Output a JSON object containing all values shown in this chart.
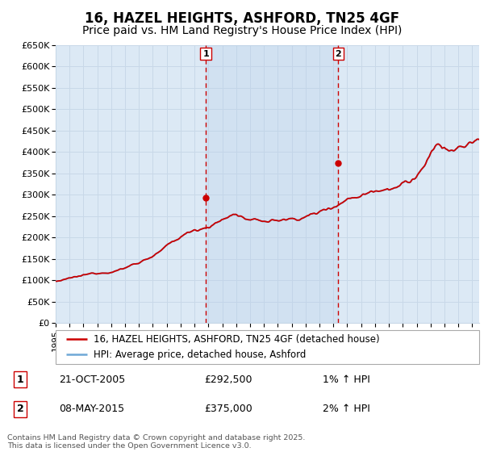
{
  "title": "16, HAZEL HEIGHTS, ASHFORD, TN25 4GF",
  "subtitle": "Price paid vs. HM Land Registry's House Price Index (HPI)",
  "title_fontsize": 12,
  "subtitle_fontsize": 10,
  "ylim": [
    0,
    650000
  ],
  "yticks": [
    0,
    50000,
    100000,
    150000,
    200000,
    250000,
    300000,
    350000,
    400000,
    450000,
    500000,
    550000,
    600000,
    650000
  ],
  "ytick_labels": [
    "£0",
    "£50K",
    "£100K",
    "£150K",
    "£200K",
    "£250K",
    "£300K",
    "£350K",
    "£400K",
    "£450K",
    "£500K",
    "£550K",
    "£600K",
    "£650K"
  ],
  "xlim_start": 1995.0,
  "xlim_end": 2025.5,
  "xtick_years": [
    1995,
    1996,
    1997,
    1998,
    1999,
    2000,
    2001,
    2002,
    2003,
    2004,
    2005,
    2006,
    2007,
    2008,
    2009,
    2010,
    2011,
    2012,
    2013,
    2014,
    2015,
    2016,
    2017,
    2018,
    2019,
    2020,
    2021,
    2022,
    2023,
    2024,
    2025
  ],
  "hpi_color": "#6fa8d6",
  "price_color": "#cc0000",
  "vline_color": "#cc0000",
  "grid_color": "#c8d8e8",
  "plot_bg_color": "#dce9f5",
  "shade_color": "#c8daf0",
  "sale1_year": 2005.81,
  "sale1_price": 292500,
  "sale2_year": 2015.36,
  "sale2_price": 375000,
  "legend_label1": "16, HAZEL HEIGHTS, ASHFORD, TN25 4GF (detached house)",
  "legend_label2": "HPI: Average price, detached house, Ashford",
  "ann1_label": "1",
  "ann1_date": "21-OCT-2005",
  "ann1_price": "£292,500",
  "ann1_hpi": "1% ↑ HPI",
  "ann2_label": "2",
  "ann2_date": "08-MAY-2015",
  "ann2_price": "£375,000",
  "ann2_hpi": "2% ↑ HPI",
  "footer": "Contains HM Land Registry data © Crown copyright and database right 2025.\nThis data is licensed under the Open Government Licence v3.0."
}
